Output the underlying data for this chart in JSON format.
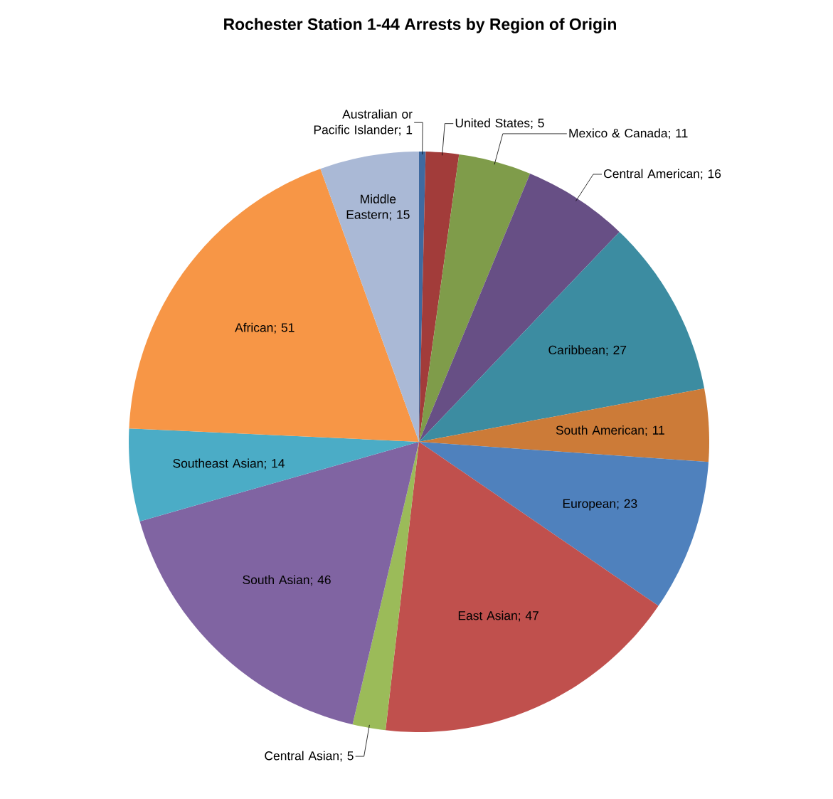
{
  "chart_data": {
    "type": "pie",
    "title": "Rochester Station 1-44 Arrests by Region of Origin",
    "categories": [
      "Australian or Pacific Islander",
      "United States",
      "Mexico & Canada",
      "Central American",
      "Caribbean",
      "South American",
      "European",
      "East Asian",
      "Central Asian",
      "South Asian",
      "Southeast Asian",
      "African",
      "Middle Eastern"
    ],
    "values": [
      1,
      5,
      11,
      16,
      27,
      11,
      23,
      47,
      5,
      46,
      14,
      51,
      15
    ],
    "colors": [
      "#3f6aa0",
      "#a23c3a",
      "#7f9c4a",
      "#674f85",
      "#3c8ca1",
      "#cc7b38",
      "#4f81bd",
      "#c0504d",
      "#9bbb59",
      "#8064a2",
      "#4bacc6",
      "#f79646",
      "#aab9d6"
    ],
    "value_labels": [
      "; 1",
      "; 5",
      "; 11",
      "; 16",
      "; 27",
      "; 11",
      "; 23",
      "; 47",
      "; 5",
      "; 46",
      "; 14",
      "; 51",
      "; 15"
    ]
  }
}
